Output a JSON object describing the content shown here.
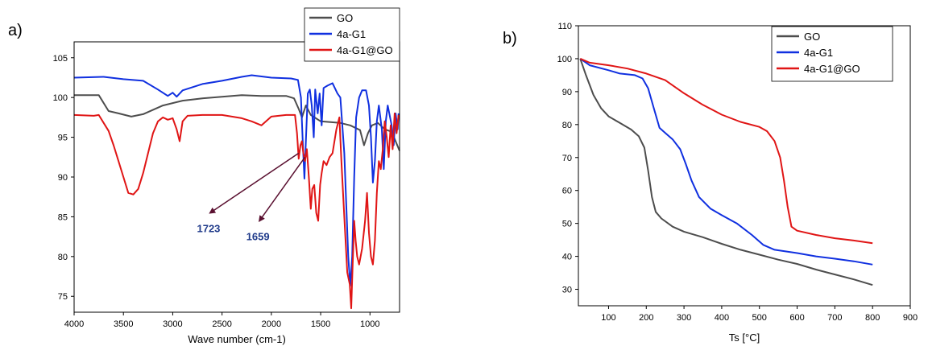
{
  "chart_data": [
    {
      "type": "line",
      "panel_label": "a)",
      "xlabel": "Wave number (cm-1)",
      "ylabel": "",
      "x_reversed": true,
      "xlim": [
        4000,
        700
      ],
      "ylim": [
        73,
        107
      ],
      "xticks": [
        4000,
        3500,
        3000,
        2500,
        2000,
        1500,
        1000
      ],
      "yticks": [
        75,
        80,
        85,
        90,
        95,
        100,
        105
      ],
      "legend_position": "top-right",
      "series": [
        {
          "name": "GO",
          "color": "#4d4d4d",
          "points": [
            [
              4000,
              100.3
            ],
            [
              3750,
              100.3
            ],
            [
              3650,
              98.3
            ],
            [
              3550,
              98.0
            ],
            [
              3420,
              97.6
            ],
            [
              3300,
              97.9
            ],
            [
              3100,
              99.0
            ],
            [
              2900,
              99.6
            ],
            [
              2700,
              99.9
            ],
            [
              2500,
              100.1
            ],
            [
              2300,
              100.3
            ],
            [
              2100,
              100.2
            ],
            [
              1850,
              100.2
            ],
            [
              1770,
              99.9
            ],
            [
              1720,
              98.5
            ],
            [
              1690,
              97.5
            ],
            [
              1650,
              99.0
            ],
            [
              1600,
              97.8
            ],
            [
              1500,
              97.0
            ],
            [
              1300,
              96.8
            ],
            [
              1200,
              96.5
            ],
            [
              1100,
              95.9
            ],
            [
              1060,
              94.0
            ],
            [
              1020,
              95.5
            ],
            [
              980,
              96.5
            ],
            [
              920,
              96.8
            ],
            [
              850,
              96.0
            ],
            [
              780,
              95.7
            ],
            [
              700,
              93.3
            ]
          ]
        },
        {
          "name": "4a-G1",
          "color": "#1030e0",
          "points": [
            [
              4000,
              102.5
            ],
            [
              3700,
              102.6
            ],
            [
              3500,
              102.3
            ],
            [
              3300,
              102.1
            ],
            [
              3150,
              101.0
            ],
            [
              3050,
              100.2
            ],
            [
              3000,
              100.6
            ],
            [
              2960,
              100.1
            ],
            [
              2900,
              100.9
            ],
            [
              2700,
              101.7
            ],
            [
              2500,
              102.1
            ],
            [
              2300,
              102.6
            ],
            [
              2200,
              102.8
            ],
            [
              2000,
              102.5
            ],
            [
              1800,
              102.4
            ],
            [
              1730,
              102.2
            ],
            [
              1700,
              100.0
            ],
            [
              1680,
              94.0
            ],
            [
              1665,
              89.8
            ],
            [
              1650,
              94.5
            ],
            [
              1630,
              100.5
            ],
            [
              1610,
              101.0
            ],
            [
              1590,
              99.0
            ],
            [
              1570,
              95.0
            ],
            [
              1555,
              101.0
            ],
            [
              1530,
              98.0
            ],
            [
              1510,
              100.5
            ],
            [
              1490,
              96.5
            ],
            [
              1470,
              101.2
            ],
            [
              1430,
              101.5
            ],
            [
              1380,
              101.8
            ],
            [
              1330,
              100.5
            ],
            [
              1300,
              100.0
            ],
            [
              1260,
              93.0
            ],
            [
              1220,
              80.0
            ],
            [
              1200,
              76.3
            ],
            [
              1180,
              80.0
            ],
            [
              1160,
              90.0
            ],
            [
              1140,
              97.5
            ],
            [
              1110,
              100.0
            ],
            [
              1080,
              100.9
            ],
            [
              1040,
              100.9
            ],
            [
              1010,
              99.0
            ],
            [
              990,
              95.0
            ],
            [
              970,
              89.3
            ],
            [
              950,
              92.0
            ],
            [
              930,
              97.0
            ],
            [
              910,
              99.0
            ],
            [
              880,
              96.0
            ],
            [
              860,
              91.0
            ],
            [
              840,
              97.0
            ],
            [
              820,
              99.0
            ],
            [
              780,
              96.5
            ],
            [
              760,
              94.0
            ],
            [
              740,
              98.0
            ],
            [
              720,
              96.0
            ],
            [
              710,
              98.0
            ]
          ]
        },
        {
          "name": "4a-G1@GO",
          "color": "#e01515",
          "points": [
            [
              4000,
              97.8
            ],
            [
              3800,
              97.7
            ],
            [
              3750,
              97.8
            ],
            [
              3700,
              96.8
            ],
            [
              3650,
              95.8
            ],
            [
              3600,
              94.0
            ],
            [
              3550,
              92.0
            ],
            [
              3500,
              90.0
            ],
            [
              3450,
              88.0
            ],
            [
              3400,
              87.8
            ],
            [
              3350,
              88.5
            ],
            [
              3300,
              90.5
            ],
            [
              3250,
              93.0
            ],
            [
              3200,
              95.5
            ],
            [
              3150,
              97.0
            ],
            [
              3100,
              97.5
            ],
            [
              3050,
              97.2
            ],
            [
              3000,
              97.4
            ],
            [
              2960,
              96.0
            ],
            [
              2930,
              94.5
            ],
            [
              2900,
              97.0
            ],
            [
              2850,
              97.7
            ],
            [
              2700,
              97.8
            ],
            [
              2500,
              97.8
            ],
            [
              2300,
              97.4
            ],
            [
              2200,
              97.0
            ],
            [
              2100,
              96.5
            ],
            [
              2000,
              97.6
            ],
            [
              1850,
              97.8
            ],
            [
              1760,
              97.8
            ],
            [
              1740,
              95.5
            ],
            [
              1723,
              92.3
            ],
            [
              1705,
              94.0
            ],
            [
              1690,
              94.5
            ],
            [
              1675,
              93.0
            ],
            [
              1659,
              92.0
            ],
            [
              1640,
              93.5
            ],
            [
              1620,
              90.0
            ],
            [
              1600,
              86.0
            ],
            [
              1585,
              88.5
            ],
            [
              1565,
              89.0
            ],
            [
              1545,
              85.5
            ],
            [
              1525,
              84.5
            ],
            [
              1505,
              89.0
            ],
            [
              1490,
              90.5
            ],
            [
              1470,
              92.0
            ],
            [
              1440,
              91.5
            ],
            [
              1410,
              92.5
            ],
            [
              1380,
              93.0
            ],
            [
              1340,
              96.0
            ],
            [
              1310,
              97.5
            ],
            [
              1290,
              92.0
            ],
            [
              1260,
              85.0
            ],
            [
              1230,
              78.0
            ],
            [
              1205,
              76.5
            ],
            [
              1190,
              73.5
            ],
            [
              1175,
              79.0
            ],
            [
              1160,
              84.5
            ],
            [
              1145,
              82.0
            ],
            [
              1130,
              80.0
            ],
            [
              1110,
              79.0
            ],
            [
              1080,
              81.0
            ],
            [
              1050,
              84.5
            ],
            [
              1030,
              88.0
            ],
            [
              1010,
              83.0
            ],
            [
              990,
              80.0
            ],
            [
              970,
              79.0
            ],
            [
              950,
              82.0
            ],
            [
              930,
              88.0
            ],
            [
              910,
              92.0
            ],
            [
              890,
              91.0
            ],
            [
              870,
              93.5
            ],
            [
              850,
              97.0
            ],
            [
              830,
              95.0
            ],
            [
              810,
              92.5
            ],
            [
              790,
              96.5
            ],
            [
              770,
              93.5
            ],
            [
              750,
              98.0
            ],
            [
              730,
              95.5
            ],
            [
              710,
              97.8
            ]
          ]
        }
      ],
      "annotations": [
        {
          "text": "1723",
          "arrow_from": [
            1723,
            93.0
          ],
          "arrow_to": [
            2620,
            85.5
          ]
        },
        {
          "text": "1659",
          "arrow_from": [
            1659,
            92.5
          ],
          "arrow_to": [
            2120,
            84.5
          ]
        }
      ]
    },
    {
      "type": "line",
      "panel_label": "b)",
      "xlabel": "Ts [°C]",
      "ylabel": "",
      "xlim": [
        20,
        900
      ],
      "ylim": [
        25,
        110
      ],
      "xticks": [
        100,
        200,
        300,
        400,
        500,
        600,
        700,
        800,
        900
      ],
      "yticks": [
        30,
        40,
        50,
        60,
        70,
        80,
        90,
        100,
        110
      ],
      "legend_position": "top-right",
      "series": [
        {
          "name": "GO",
          "color": "#4d4d4d",
          "points": [
            [
              25,
              100
            ],
            [
              40,
              95
            ],
            [
              60,
              89
            ],
            [
              80,
              85
            ],
            [
              100,
              82.5
            ],
            [
              130,
              80.5
            ],
            [
              160,
              78.5
            ],
            [
              180,
              76.5
            ],
            [
              195,
              73
            ],
            [
              205,
              66
            ],
            [
              215,
              58
            ],
            [
              225,
              53.5
            ],
            [
              240,
              51.5
            ],
            [
              270,
              49
            ],
            [
              300,
              47.5
            ],
            [
              350,
              45.8
            ],
            [
              400,
              43.8
            ],
            [
              450,
              42
            ],
            [
              500,
              40.5
            ],
            [
              550,
              39
            ],
            [
              600,
              37.7
            ],
            [
              650,
              36
            ],
            [
              700,
              34.5
            ],
            [
              750,
              33
            ],
            [
              800,
              31.3
            ]
          ]
        },
        {
          "name": "4a-G1",
          "color": "#1030e0",
          "points": [
            [
              25,
              100
            ],
            [
              50,
              98
            ],
            [
              100,
              96.5
            ],
            [
              130,
              95.5
            ],
            [
              170,
              95
            ],
            [
              190,
              94
            ],
            [
              205,
              91
            ],
            [
              220,
              85
            ],
            [
              235,
              79
            ],
            [
              250,
              77.5
            ],
            [
              270,
              75.5
            ],
            [
              290,
              72.5
            ],
            [
              305,
              68
            ],
            [
              320,
              63
            ],
            [
              340,
              58
            ],
            [
              370,
              54.5
            ],
            [
              400,
              52.5
            ],
            [
              440,
              50
            ],
            [
              480,
              46.5
            ],
            [
              510,
              43.5
            ],
            [
              540,
              42
            ],
            [
              600,
              41
            ],
            [
              650,
              40
            ],
            [
              700,
              39.3
            ],
            [
              750,
              38.5
            ],
            [
              800,
              37.5
            ]
          ]
        },
        {
          "name": "4a-G1@GO",
          "color": "#e01515",
          "points": [
            [
              25,
              100
            ],
            [
              50,
              98.8
            ],
            [
              100,
              98
            ],
            [
              150,
              97
            ],
            [
              200,
              95.5
            ],
            [
              250,
              93.5
            ],
            [
              300,
              89.5
            ],
            [
              350,
              86
            ],
            [
              400,
              83
            ],
            [
              450,
              80.8
            ],
            [
              500,
              79.3
            ],
            [
              520,
              78
            ],
            [
              540,
              75
            ],
            [
              555,
              70
            ],
            [
              565,
              63
            ],
            [
              575,
              55
            ],
            [
              585,
              49
            ],
            [
              600,
              47.8
            ],
            [
              650,
              46.5
            ],
            [
              700,
              45.5
            ],
            [
              750,
              44.8
            ],
            [
              800,
              44
            ]
          ]
        }
      ]
    }
  ]
}
